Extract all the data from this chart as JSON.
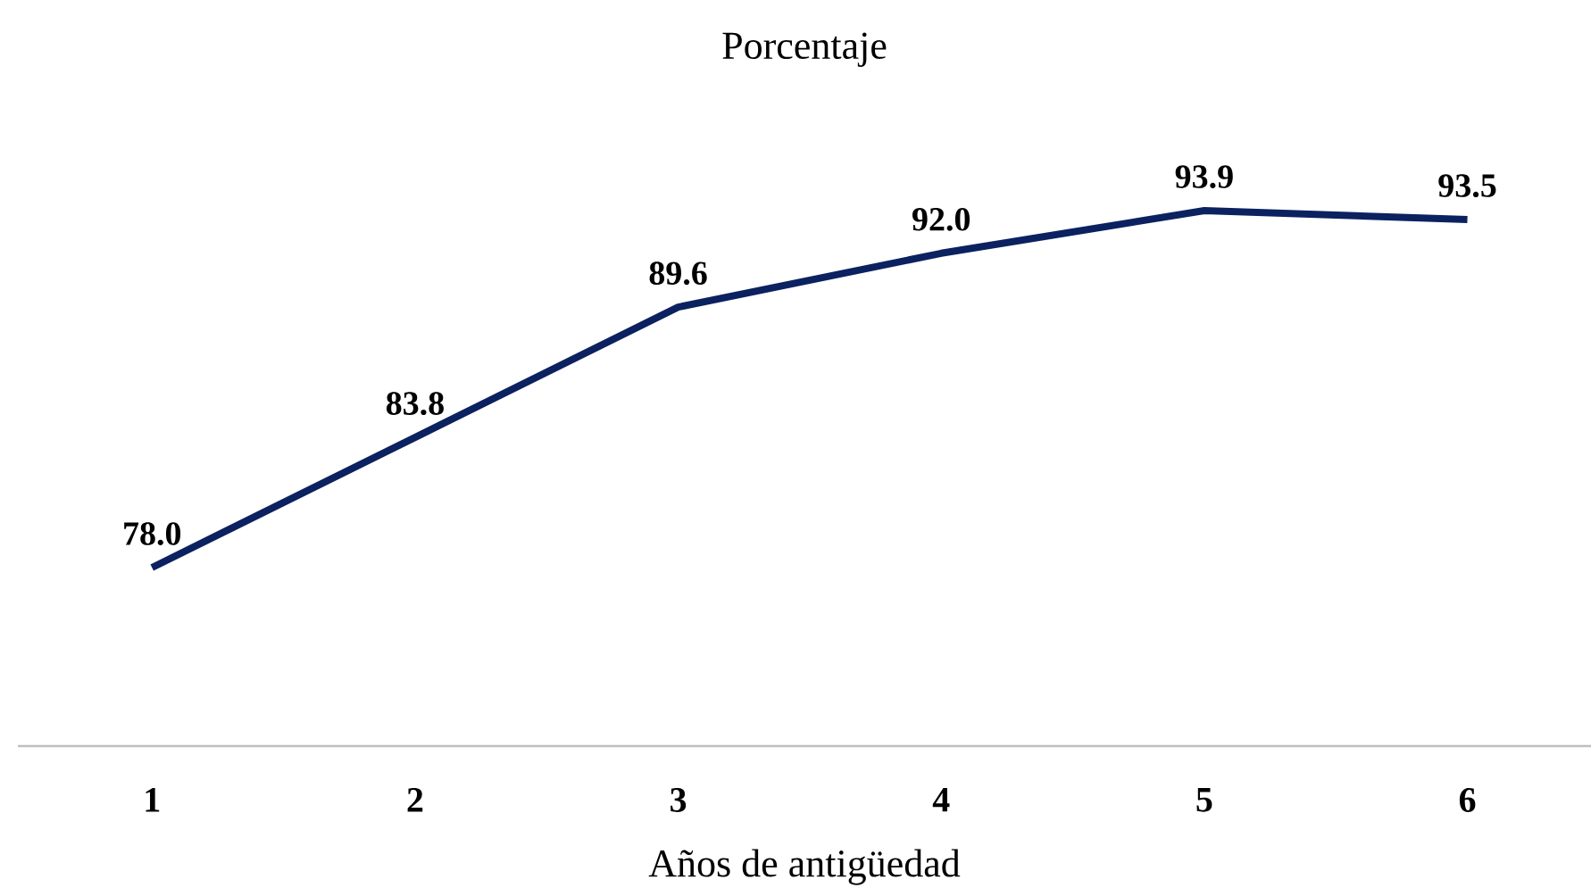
{
  "chart_data": {
    "type": "line",
    "title": "Porcentaje",
    "xlabel": "Años de antigüedad",
    "categories": [
      "1",
      "2",
      "3",
      "4",
      "5",
      "6"
    ],
    "values": [
      78.0,
      83.8,
      89.6,
      92.0,
      93.9,
      93.5
    ],
    "value_labels": [
      "78.0",
      "83.8",
      "89.6",
      "92.0",
      "93.9",
      "93.5"
    ],
    "color": "#0b2160",
    "tick_labels": "x"
  }
}
